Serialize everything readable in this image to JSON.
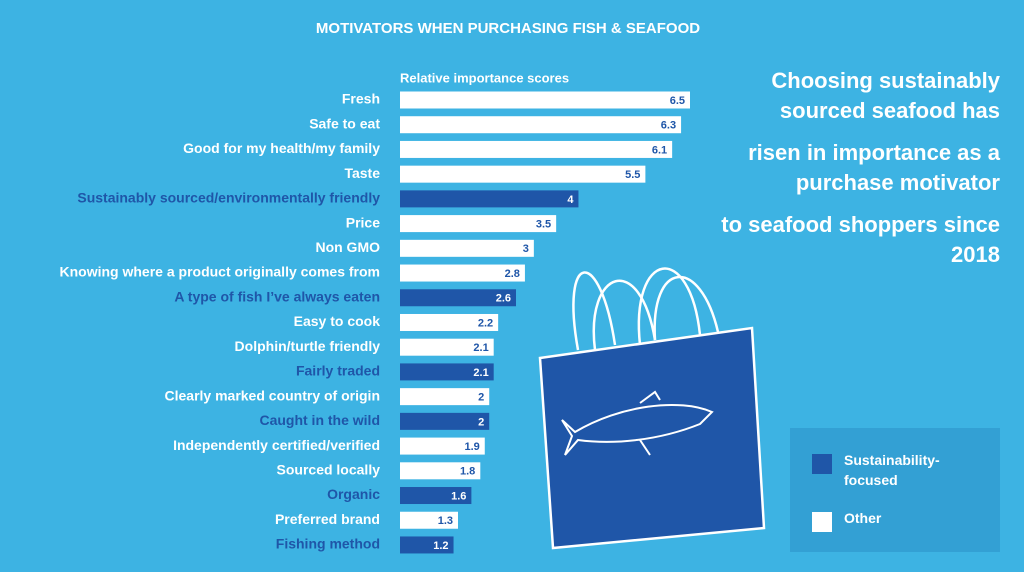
{
  "chart_data": {
    "type": "bar",
    "orientation": "horizontal",
    "title": "MOTIVATORS WHEN PURCHASING FISH & SEAFOOD",
    "subtitle": "Relative importance scores",
    "headline": [
      "Choosing sustainably sourced seafood has",
      "risen in importance as a purchase motivator",
      "to seafood shoppers since 2018"
    ],
    "categories": [
      "Fresh",
      "Safe to eat",
      "Good for my health/my family",
      "Taste",
      "Sustainably sourced/environmentally friendly",
      "Price",
      "Non GMO",
      "Knowing where a product originally comes from",
      "A type of fish I’ve always eaten",
      "Easy to cook",
      "Dolphin/turtle friendly",
      "Fairly traded",
      "Clearly marked country of origin",
      "Caught in the wild",
      "Independently certified/verified",
      "Sourced locally",
      "Organic",
      "Preferred brand",
      "Fishing method"
    ],
    "series": [
      {
        "name": "Sustainability-focused",
        "color": "#1f56a8",
        "label_color": "#1f56a8",
        "values": [
          null,
          null,
          null,
          null,
          4,
          null,
          null,
          null,
          2.6,
          null,
          null,
          2.1,
          null,
          2,
          null,
          null,
          1.6,
          null,
          1.2
        ]
      },
      {
        "name": "Other",
        "color": "#ffffff",
        "label_color": "#ffffff",
        "values": [
          6.5,
          6.3,
          6.1,
          5.5,
          null,
          3.5,
          3,
          2.8,
          null,
          2.2,
          2.1,
          null,
          2,
          null,
          1.9,
          1.8,
          null,
          1.3,
          null
        ]
      }
    ]
  }
}
